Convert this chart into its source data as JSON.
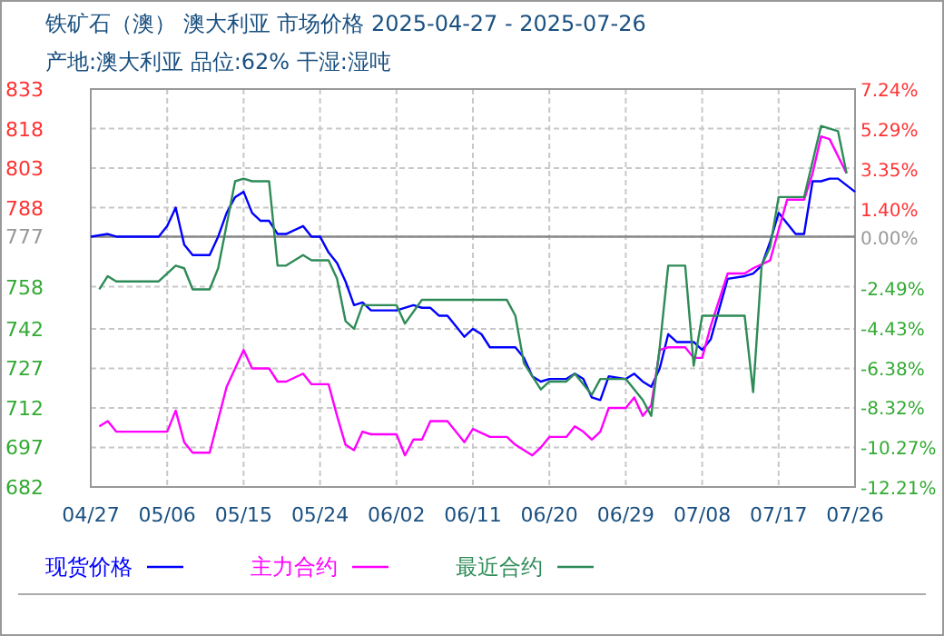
{
  "chart_data": {
    "type": "line",
    "title": "铁矿石（澳） 澳大利亚 市场价格 2025-04-27 - 2025-07-26",
    "subtitle": "产地:澳大利亚 品位:62% 干湿:湿吨",
    "xlim": [
      "2025-04-27",
      "2025-07-26"
    ],
    "xticks": [
      {
        "value": "2025-04-27",
        "label": "04/27"
      },
      {
        "value": "2025-05-06",
        "label": "05/06"
      },
      {
        "value": "2025-05-15",
        "label": "05/15"
      },
      {
        "value": "2025-05-24",
        "label": "05/24"
      },
      {
        "value": "2025-06-02",
        "label": "06/02"
      },
      {
        "value": "2025-06-11",
        "label": "06/11"
      },
      {
        "value": "2025-06-20",
        "label": "06/20"
      },
      {
        "value": "2025-06-29",
        "label": "06/29"
      },
      {
        "value": "2025-07-08",
        "label": "07/08"
      },
      {
        "value": "2025-07-17",
        "label": "07/17"
      },
      {
        "value": "2025-07-26",
        "label": "07/26"
      }
    ],
    "ylim": [
      682,
      833
    ],
    "yticks": [
      833,
      818,
      803,
      788,
      777,
      758,
      742,
      727,
      712,
      697,
      682
    ],
    "y2lim": [
      -12.21,
      7.24
    ],
    "y2ticks": [
      {
        "value": 7.24,
        "label": "7.24%"
      },
      {
        "value": 5.29,
        "label": "5.29%"
      },
      {
        "value": 3.35,
        "label": "3.35%"
      },
      {
        "value": 1.4,
        "label": "1.40%"
      },
      {
        "value": 0,
        "label": "0.00%"
      },
      {
        "value": -2.49,
        "label": "-2.49%"
      },
      {
        "value": -4.43,
        "label": "-4.43%"
      },
      {
        "value": -6.38,
        "label": "-6.38%"
      },
      {
        "value": -8.32,
        "label": "-8.32%"
      },
      {
        "value": -10.27,
        "label": "-10.27%"
      },
      {
        "value": -12.21,
        "label": "-12.21%"
      }
    ],
    "ref_lines": [
      {
        "axis": "y",
        "value": 777,
        "color": "#888888"
      }
    ],
    "grid": true,
    "legend": "bottom",
    "series": [
      {
        "name": "现货价格",
        "color": "#0000ff",
        "x": [
          "2025-04-27",
          "2025-04-29",
          "2025-04-30",
          "2025-05-05",
          "2025-05-06",
          "2025-05-07",
          "2025-05-08",
          "2025-05-09",
          "2025-05-11",
          "2025-05-12",
          "2025-05-13",
          "2025-05-14",
          "2025-05-15",
          "2025-05-16",
          "2025-05-17",
          "2025-05-18",
          "2025-05-19",
          "2025-05-20",
          "2025-05-22",
          "2025-05-23",
          "2025-05-24",
          "2025-05-25",
          "2025-05-26",
          "2025-05-27",
          "2025-05-28",
          "2025-05-29",
          "2025-05-30",
          "2025-06-02",
          "2025-06-04",
          "2025-06-05",
          "2025-06-06",
          "2025-06-07",
          "2025-06-08",
          "2025-06-09",
          "2025-06-10",
          "2025-06-11",
          "2025-06-12",
          "2025-06-13",
          "2025-06-16",
          "2025-06-17",
          "2025-06-18",
          "2025-06-19",
          "2025-06-20",
          "2025-06-22",
          "2025-06-23",
          "2025-06-24",
          "2025-06-25",
          "2025-06-26",
          "2025-06-27",
          "2025-06-29",
          "2025-06-30",
          "2025-07-01",
          "2025-07-02",
          "2025-07-03",
          "2025-07-04",
          "2025-07-05",
          "2025-07-07",
          "2025-07-08",
          "2025-07-09",
          "2025-07-11",
          "2025-07-13",
          "2025-07-14",
          "2025-07-15",
          "2025-07-16",
          "2025-07-17",
          "2025-07-19",
          "2025-07-20",
          "2025-07-21",
          "2025-07-22",
          "2025-07-23",
          "2025-07-24",
          "2025-07-26"
        ],
        "values": [
          777,
          778,
          777,
          777,
          781,
          788,
          774,
          770,
          770,
          777,
          786,
          792,
          794,
          786,
          783,
          783,
          778,
          778,
          781,
          777,
          777,
          771,
          767,
          760,
          751,
          752,
          749,
          749,
          751,
          750,
          750,
          747,
          747,
          743,
          739,
          742,
          740,
          735,
          735,
          731,
          724,
          722,
          723,
          723,
          725,
          723,
          716,
          715,
          724,
          723,
          725,
          722,
          720,
          727,
          740,
          737,
          737,
          734,
          738,
          761,
          762,
          763,
          766,
          775,
          786,
          778,
          778,
          798,
          798,
          799,
          799,
          794
        ]
      },
      {
        "name": "主力合约",
        "color": "#ff00ff",
        "x": [
          "2025-04-28",
          "2025-04-29",
          "2025-04-30",
          "2025-05-06",
          "2025-05-07",
          "2025-05-08",
          "2025-05-09",
          "2025-05-11",
          "2025-05-13",
          "2025-05-15",
          "2025-05-16",
          "2025-05-18",
          "2025-05-19",
          "2025-05-20",
          "2025-05-22",
          "2025-05-23",
          "2025-05-25",
          "2025-05-26",
          "2025-05-27",
          "2025-05-28",
          "2025-05-29",
          "2025-05-30",
          "2025-06-02",
          "2025-06-03",
          "2025-06-04",
          "2025-06-05",
          "2025-06-06",
          "2025-06-08",
          "2025-06-10",
          "2025-06-11",
          "2025-06-13",
          "2025-06-15",
          "2025-06-16",
          "2025-06-18",
          "2025-06-19",
          "2025-06-20",
          "2025-06-22",
          "2025-06-23",
          "2025-06-24",
          "2025-06-25",
          "2025-06-26",
          "2025-06-27",
          "2025-06-29",
          "2025-06-30",
          "2025-07-01",
          "2025-07-02",
          "2025-07-03",
          "2025-07-04",
          "2025-07-06",
          "2025-07-07",
          "2025-07-08",
          "2025-07-09",
          "2025-07-11",
          "2025-07-13",
          "2025-07-14",
          "2025-07-16",
          "2025-07-18",
          "2025-07-20",
          "2025-07-21",
          "2025-07-22",
          "2025-07-23",
          "2025-07-25"
        ],
        "values": [
          705,
          707,
          703,
          703,
          711,
          699,
          695,
          695,
          720,
          734,
          727,
          727,
          722,
          722,
          725,
          721,
          721,
          709,
          698,
          696,
          703,
          702,
          702,
          694,
          700,
          700,
          707,
          707,
          699,
          704,
          701,
          701,
          698,
          694,
          697,
          701,
          701,
          705,
          703,
          700,
          703,
          712,
          712,
          716,
          709,
          713,
          734,
          735,
          735,
          731,
          731,
          743,
          763,
          763,
          765,
          768,
          791,
          791,
          801,
          815,
          814,
          801
        ]
      },
      {
        "name": "最近合约",
        "color": "#2e8b57",
        "x": [
          "2025-04-28",
          "2025-04-29",
          "2025-04-30",
          "2025-05-05",
          "2025-05-07",
          "2025-05-08",
          "2025-05-09",
          "2025-05-11",
          "2025-05-12",
          "2025-05-14",
          "2025-05-15",
          "2025-05-16",
          "2025-05-18",
          "2025-05-19",
          "2025-05-20",
          "2025-05-22",
          "2025-05-23",
          "2025-05-25",
          "2025-05-26",
          "2025-05-27",
          "2025-05-28",
          "2025-05-29",
          "2025-05-30",
          "2025-06-02",
          "2025-06-03",
          "2025-06-05",
          "2025-06-15",
          "2025-06-16",
          "2025-06-17",
          "2025-06-19",
          "2025-06-20",
          "2025-06-22",
          "2025-06-23",
          "2025-06-25",
          "2025-06-26",
          "2025-06-29",
          "2025-07-01",
          "2025-07-02",
          "2025-07-03",
          "2025-07-04",
          "2025-07-06",
          "2025-07-07",
          "2025-07-08",
          "2025-07-13",
          "2025-07-14",
          "2025-07-15",
          "2025-07-16",
          "2025-07-17",
          "2025-07-20",
          "2025-07-22",
          "2025-07-24",
          "2025-07-25"
        ],
        "values": [
          757,
          762,
          760,
          760,
          766,
          765,
          757,
          757,
          765,
          798,
          799,
          798,
          798,
          766,
          766,
          770,
          768,
          768,
          761,
          745,
          742,
          751,
          751,
          751,
          744,
          753,
          753,
          747,
          729,
          719,
          722,
          722,
          725,
          717,
          723,
          723,
          715,
          709,
          735,
          766,
          766,
          728,
          747,
          747,
          718,
          766,
          773,
          792,
          792,
          819,
          817,
          801
        ]
      }
    ]
  }
}
